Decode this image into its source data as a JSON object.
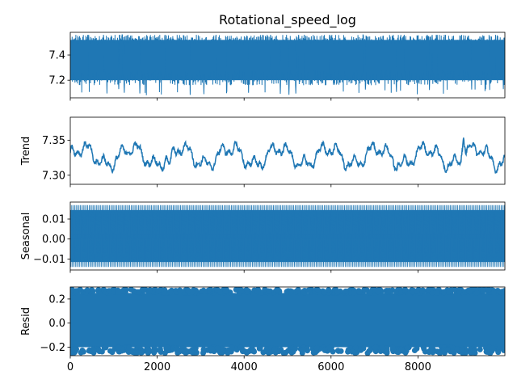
{
  "chart_data": {
    "type": "line",
    "title": "Rotational_speed_log",
    "color": "#1f77b4",
    "x_range": [
      0,
      10000
    ],
    "x_ticks": [
      0,
      2000,
      4000,
      6000,
      8000
    ],
    "panels": [
      {
        "id": "observed",
        "type": "line",
        "ylabel": "",
        "ylim": [
          7.06,
          7.58
        ],
        "yticks": [
          {
            "value": 7.2,
            "label": "7.2"
          },
          {
            "value": 7.4,
            "label": "7.4"
          }
        ],
        "series": {
          "center": 7.33,
          "band_low": 7.16,
          "band_high": 7.56,
          "min": 7.08,
          "max": 7.56
        }
      },
      {
        "id": "trend",
        "type": "line",
        "ylabel": "Trend",
        "ylim": [
          7.287,
          7.383
        ],
        "yticks": [
          {
            "value": 7.3,
            "label": "7.30"
          },
          {
            "value": 7.35,
            "label": "7.35"
          }
        ],
        "series": {
          "center": 7.327,
          "min": 7.295,
          "max": 7.376
        }
      },
      {
        "id": "seasonal",
        "type": "line",
        "ylabel": "Seasonal",
        "ylim": [
          -0.0155,
          0.0185
        ],
        "yticks": [
          {
            "value": -0.01,
            "label": "−0.01"
          },
          {
            "value": 0.0,
            "label": "0.00"
          },
          {
            "value": 0.01,
            "label": "0.01"
          }
        ],
        "series": {
          "min": -0.014,
          "max": 0.017,
          "upper_dense": 0.0145,
          "lower_dense": -0.0115
        }
      },
      {
        "id": "resid",
        "type": "scatter",
        "ylabel": "Resid",
        "ylim": [
          -0.27,
          0.3
        ],
        "yticks": [
          {
            "value": -0.2,
            "label": "−0.2"
          },
          {
            "value": 0.0,
            "label": "0.0"
          },
          {
            "value": 0.2,
            "label": "0.2"
          }
        ],
        "series": {
          "band_low": -0.2,
          "band_high": 0.25,
          "min": -0.25,
          "max": 0.28
        }
      }
    ]
  }
}
